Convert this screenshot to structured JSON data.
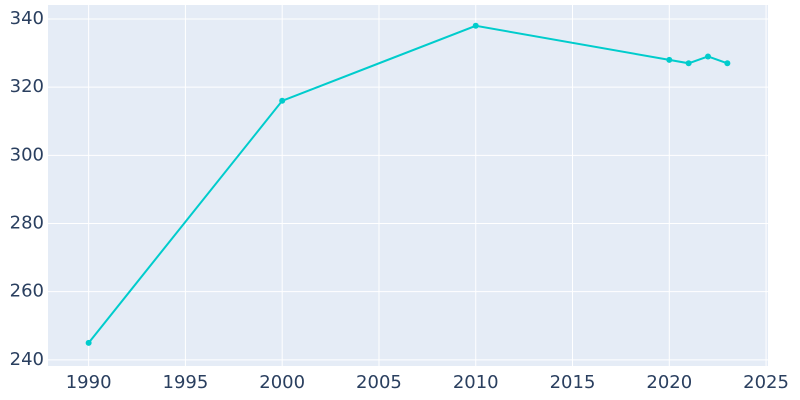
{
  "chart_data": {
    "type": "line",
    "x": [
      1990,
      2000,
      2010,
      2020,
      2021,
      2022,
      2023
    ],
    "series": [
      {
        "color": "#00cccc",
        "values": [
          245,
          316,
          338,
          328,
          327,
          329,
          327
        ]
      }
    ],
    "xlim": [
      1987.9,
      2025.1
    ],
    "xticks": [
      1990,
      1995,
      2000,
      2005,
      2010,
      2015,
      2020,
      2025
    ],
    "ylim": [
      238.2,
      344.1
    ],
    "yticks": [
      240,
      260,
      280,
      300,
      320,
      340
    ],
    "grid": true
  }
}
